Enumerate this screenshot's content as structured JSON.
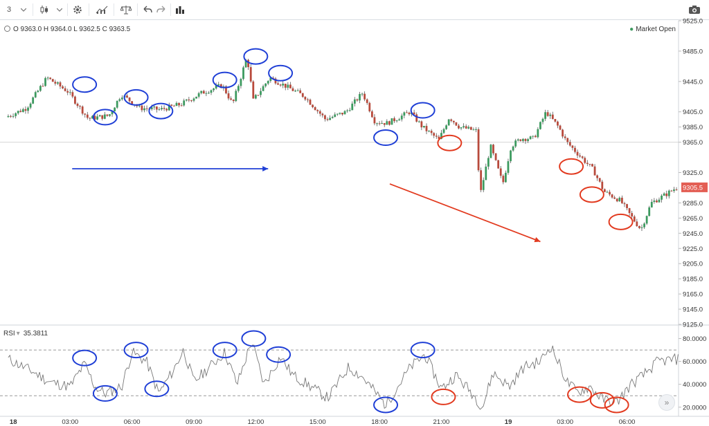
{
  "toolbar": {
    "interval": "3",
    "buttons": [
      {
        "name": "interval-dropdown-icon",
        "icon": "chevron-down-icon"
      },
      {
        "name": "candles-icon",
        "icon": "candlestick-icon"
      },
      {
        "name": "style-dropdown-icon",
        "icon": "chevron-down-icon"
      },
      {
        "name": "settings-icon",
        "icon": "gear-icon"
      },
      {
        "name": "indicators-icon",
        "icon": "indicators-icon"
      },
      {
        "name": "compare-icon",
        "icon": "scales-icon"
      },
      {
        "name": "undo-icon",
        "icon": "undo-icon"
      },
      {
        "name": "redo-icon",
        "icon": "redo-icon"
      },
      {
        "name": "bars-icon",
        "icon": "bar-chart-icon"
      },
      {
        "name": "snapshot-icon",
        "icon": "camera-icon"
      }
    ]
  },
  "legend": {
    "ohlc": "O 9363.0  H 9364.0  L 9362.5  C 9363.5",
    "status": "Market Open",
    "rsi_name": "RSI",
    "rsi_value": "35.3811"
  },
  "colors": {
    "up": "#3c9a5f",
    "down": "#b84a3c",
    "wick": "#555555",
    "blue_marker": "#1f3fd6",
    "red_marker": "#e23a1f",
    "price_tag": "#e35e54",
    "rsi_line": "#777777"
  },
  "chart_data": [
    {
      "type": "candlestick",
      "y_axis_ticks": [
        "9525.0",
        "9485.0",
        "9445.0",
        "9405.0",
        "9385.0",
        "9365.0",
        "9325.0",
        "9285.0",
        "9265.0",
        "9245.0",
        "9225.0",
        "9205.0",
        "9185.0",
        "9165.0",
        "9145.0",
        "9125.0"
      ],
      "ylim": [
        9125,
        9525
      ],
      "last_price": "9305.5",
      "reference_line": 9365,
      "x_tick_labels": [
        "18",
        "03:00",
        "06:00",
        "09:00",
        "12:00",
        "15:00",
        "18:00",
        "21:00",
        "19",
        "03:00",
        "06:00"
      ],
      "x_tick_hours": [
        0,
        3,
        6,
        9,
        12,
        15,
        18,
        21,
        24,
        27,
        30
      ],
      "xlim_hours": [
        -0.4,
        32.5
      ],
      "price_path": [
        [
          0,
          9398
        ],
        [
          1,
          9410
        ],
        [
          2,
          9450
        ],
        [
          3,
          9432
        ],
        [
          4,
          9396
        ],
        [
          5,
          9400
        ],
        [
          5.6,
          9428
        ],
        [
          6.5,
          9410
        ],
        [
          7.5,
          9408
        ],
        [
          8.5,
          9415
        ],
        [
          9.5,
          9430
        ],
        [
          10.5,
          9440
        ],
        [
          11,
          9415
        ],
        [
          11.7,
          9478
        ],
        [
          12,
          9420
        ],
        [
          12.8,
          9450
        ],
        [
          13.5,
          9440
        ],
        [
          14.5,
          9425
        ],
        [
          15.5,
          9395
        ],
        [
          16.5,
          9405
        ],
        [
          17.3,
          9430
        ],
        [
          17.9,
          9392
        ],
        [
          18.5,
          9390
        ],
        [
          19.6,
          9405
        ],
        [
          20.2,
          9385
        ],
        [
          21,
          9368
        ],
        [
          21.5,
          9398
        ],
        [
          22,
          9385
        ],
        [
          22.8,
          9380
        ],
        [
          23,
          9295
        ],
        [
          23.5,
          9360
        ],
        [
          24.1,
          9310
        ],
        [
          24.5,
          9360
        ],
        [
          25,
          9370
        ],
        [
          25.6,
          9370
        ],
        [
          26.2,
          9405
        ],
        [
          26.8,
          9385
        ],
        [
          27.2,
          9365
        ],
        [
          27.8,
          9348
        ],
        [
          28.5,
          9328
        ],
        [
          29,
          9300
        ],
        [
          29.8,
          9288
        ],
        [
          30.3,
          9268
        ],
        [
          30.8,
          9250
        ],
        [
          31.3,
          9285
        ],
        [
          32,
          9296
        ],
        [
          32.5,
          9305
        ]
      ],
      "annotations": {
        "blue_markers": [
          [
            3.7,
            9441
          ],
          [
            4.7,
            9398
          ],
          [
            6.2,
            9424
          ],
          [
            7.4,
            9406
          ],
          [
            10.5,
            9447
          ],
          [
            12,
            9478
          ],
          [
            13.2,
            9456
          ],
          [
            18.3,
            9371
          ],
          [
            20.1,
            9407
          ]
        ],
        "red_markers": [
          [
            21.4,
            9364
          ],
          [
            27.3,
            9333
          ],
          [
            28.3,
            9296
          ],
          [
            29.7,
            9260
          ]
        ],
        "blue_arrow": {
          "from": [
            3.1,
            9330
          ],
          "to": [
            12.6,
            9330
          ]
        },
        "red_arrow": {
          "from": [
            18.5,
            9310
          ],
          "to": [
            25.8,
            9234
          ]
        }
      }
    },
    {
      "type": "line",
      "name": "RSI",
      "y_axis_ticks": [
        "80.0000",
        "60.0000",
        "40.0000",
        "20.0000"
      ],
      "ylim": [
        12,
        90
      ],
      "levels": [
        70,
        30
      ],
      "rsi_path": [
        [
          0,
          62
        ],
        [
          1.3,
          50
        ],
        [
          2,
          42
        ],
        [
          3,
          38
        ],
        [
          3.7,
          58
        ],
        [
          4.2,
          38
        ],
        [
          4.7,
          32
        ],
        [
          5.5,
          38
        ],
        [
          6,
          68
        ],
        [
          6.7,
          60
        ],
        [
          7.3,
          32
        ],
        [
          8,
          52
        ],
        [
          8.5,
          70
        ],
        [
          9,
          42
        ],
        [
          10.5,
          68
        ],
        [
          11.1,
          40
        ],
        [
          11.8,
          78
        ],
        [
          12.4,
          40
        ],
        [
          13.2,
          64
        ],
        [
          13.8,
          48
        ],
        [
          14.5,
          40
        ],
        [
          15.5,
          28
        ],
        [
          16.5,
          55
        ],
        [
          17.2,
          46
        ],
        [
          18.3,
          22
        ],
        [
          19.5,
          55
        ],
        [
          20.2,
          66
        ],
        [
          21,
          36
        ],
        [
          21.7,
          48
        ],
        [
          22.5,
          32
        ],
        [
          23,
          20
        ],
        [
          23.5,
          50
        ],
        [
          24.3,
          38
        ],
        [
          25,
          55
        ],
        [
          25.8,
          60
        ],
        [
          26.3,
          74
        ],
        [
          27.1,
          42
        ],
        [
          27.6,
          33
        ],
        [
          28.2,
          38
        ],
        [
          28.8,
          27
        ],
        [
          29.5,
          24
        ],
        [
          30.2,
          40
        ],
        [
          30.8,
          48
        ],
        [
          31.5,
          60
        ],
        [
          32.5,
          62
        ]
      ],
      "annotations": {
        "blue_markers": [
          [
            3.7,
            63
          ],
          [
            4.7,
            32
          ],
          [
            6.2,
            70
          ],
          [
            7.2,
            36
          ],
          [
            10.5,
            70
          ],
          [
            11.9,
            80
          ],
          [
            13.1,
            66
          ],
          [
            18.3,
            22
          ],
          [
            20.1,
            70
          ]
        ],
        "red_markers": [
          [
            21.1,
            29
          ],
          [
            27.7,
            31
          ],
          [
            28.8,
            26
          ],
          [
            29.5,
            22
          ]
        ]
      }
    }
  ],
  "scroll": {
    "label": "»"
  }
}
